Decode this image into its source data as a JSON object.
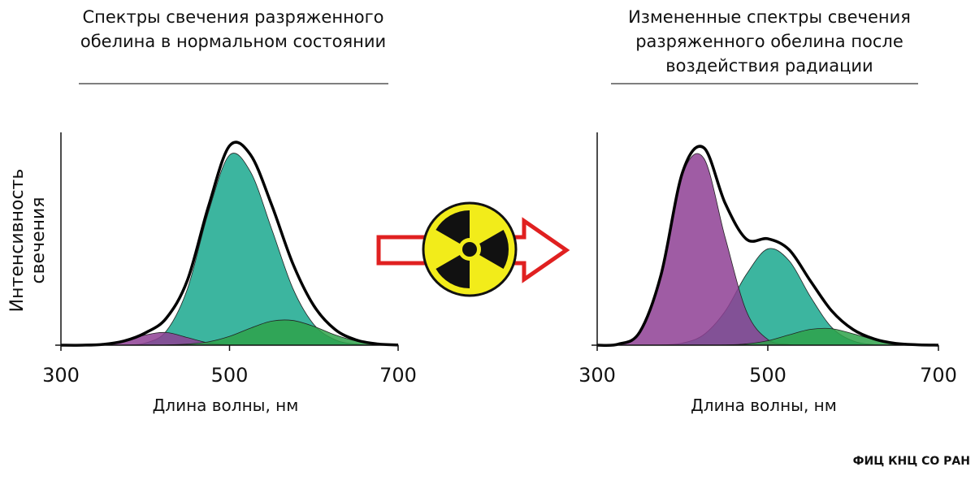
{
  "chart_data": [
    {
      "type": "area",
      "title": "Спектры свечения разряженного обелина в нормальном состоянии",
      "ylabel": "Интенсивность свечения",
      "xlabel": "Длина волны, нм",
      "x": [
        300,
        325,
        350,
        375,
        400,
        425,
        450,
        475,
        500,
        525,
        550,
        575,
        600,
        625,
        650,
        675,
        700
      ],
      "xlim": [
        300,
        700
      ],
      "xticks": [
        300,
        500,
        700
      ],
      "ylim": [
        0,
        100
      ],
      "series": [
        {
          "color": "#1aa88e",
          "values": [
            0,
            0,
            0,
            0.1,
            1.0,
            6.7,
            26.6,
            63,
            90,
            82,
            55,
            27,
            9.8,
            2.6,
            0.5,
            0,
            0
          ]
        },
        {
          "color": "#8e3f94",
          "values": [
            0,
            0,
            0.4,
            1.9,
            4.8,
            6.0,
            3.6,
            1.1,
            0.2,
            0,
            0,
            0,
            0,
            0,
            0,
            0,
            0
          ]
        },
        {
          "color": "#2ea24a",
          "values": [
            0,
            0,
            0,
            0,
            0,
            0.1,
            0.5,
            1.6,
            4.2,
            8.1,
            11.4,
            11.7,
            8.9,
            4.9,
            2.0,
            0.6,
            0.1
          ]
        }
      ],
      "envelope": {
        "color": "#000000",
        "values": [
          0,
          0,
          0.4,
          2.0,
          5.8,
          12.8,
          30.7,
          65.7,
          94.4,
          90.1,
          66.4,
          38.7,
          18.7,
          7.5,
          2.5,
          0.6,
          0.1
        ]
      }
    },
    {
      "type": "area",
      "title": "Измененные спектры свечения разряженного обелина после воздействия радиации",
      "xlabel": "Длина волны, нм",
      "x": [
        300,
        325,
        350,
        375,
        400,
        425,
        450,
        475,
        500,
        525,
        550,
        575,
        600,
        625,
        650,
        675,
        700
      ],
      "xlim": [
        300,
        700
      ],
      "xticks": [
        300,
        500,
        700
      ],
      "ylim": [
        0,
        100
      ],
      "series": [
        {
          "color": "#1aa88e",
          "values": [
            0,
            0,
            0,
            0.1,
            1.0,
            5.0,
            16.1,
            33.6,
            45.6,
            40,
            22.9,
            8.4,
            2.0,
            0.3,
            0,
            0,
            0
          ]
        },
        {
          "color": "#8e3f94",
          "values": [
            0,
            0.5,
            6.3,
            33.5,
            80.8,
            88.5,
            51,
            16,
            2.7,
            0.3,
            0,
            0,
            0,
            0,
            0,
            0,
            0
          ]
        },
        {
          "color": "#2ea24a",
          "values": [
            0,
            0,
            0,
            0,
            0,
            0,
            0.1,
            0.6,
            2.1,
            4.9,
            7.5,
            7.8,
            5.4,
            2.6,
            0.8,
            0.2,
            0
          ]
        }
      ],
      "envelope": {
        "color": "#000000",
        "values": [
          0,
          0.5,
          6.3,
          33.6,
          81.8,
          93.5,
          67.2,
          50.2,
          50.4,
          45.2,
          30.4,
          16.2,
          7.4,
          2.9,
          0.8,
          0.2,
          0
        ]
      }
    }
  ],
  "source": "ФИЦ КНЦ СО РАН"
}
